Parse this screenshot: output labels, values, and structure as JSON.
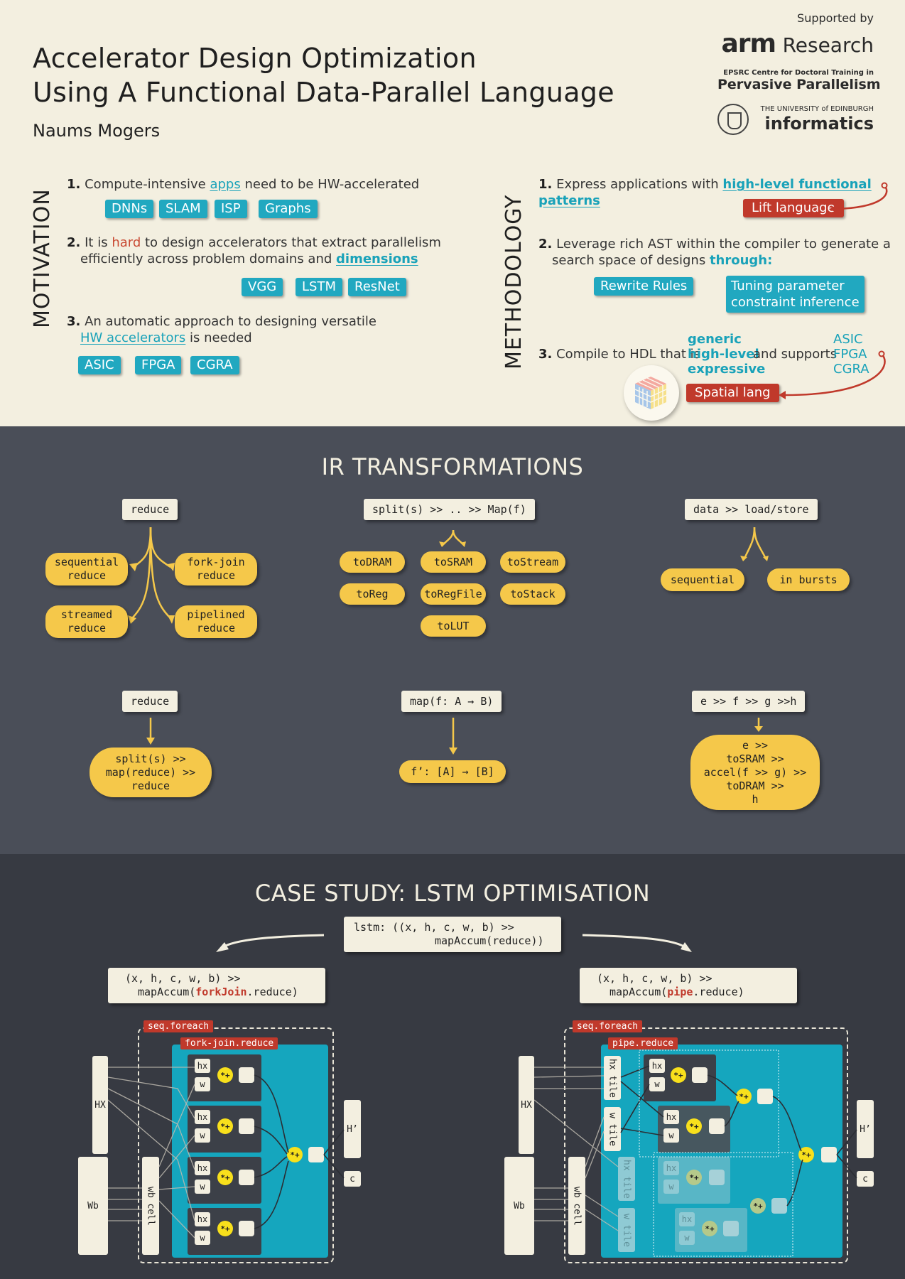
{
  "header": {
    "title_line1": "Accelerator Design Optimization",
    "title_line2": "Using A Functional Data-Parallel Language",
    "author": "Naums Mogers",
    "supported_by": "Supported by",
    "arm_logo": "arm",
    "arm_research": "Research",
    "epsrc_line": "EPSRC Centre for Doctoral Training in",
    "pervasive": "Pervasive Parallelism",
    "uoe": "THE UNIVERSITY of EDINBURGH",
    "informatics": "informatics"
  },
  "motivation": {
    "label": "MOTIVATION",
    "item1": {
      "num": "1.",
      "pre": "Compute-intensive ",
      "hl": "apps",
      "post": " need to be HW-accelerated",
      "tags": [
        "DNNs",
        "SLAM",
        "ISP",
        "Graphs"
      ]
    },
    "item2": {
      "num": "2.",
      "pre": "It is ",
      "red": "hard",
      "mid": " to design accelerators that extract parallelism",
      "line2": "efficiently across problem domains and ",
      "hl": "dimensions",
      "tags": [
        "VGG",
        "LSTM",
        "ResNet"
      ]
    },
    "item3": {
      "num": "3.",
      "line1": "An automatic approach to designing versatile",
      "hl": "HW accelerators",
      "post": " is needed",
      "tags": [
        "ASIC",
        "FPGA",
        "CGRA"
      ]
    }
  },
  "methodology": {
    "label": "METHODOLOGY",
    "item1": {
      "num": "1.",
      "pre": "Express applications with ",
      "hl": "high-level functional patterns",
      "tag": "Lift language"
    },
    "item2": {
      "num": "2.",
      "line1": "Leverage rich AST within the compiler to generate a",
      "line2": "search space of designs ",
      "hl": "through:",
      "tag1": "Rewrite Rules",
      "tag2_line1": "Tuning parameter",
      "tag2_line2": "constraint inference"
    },
    "item3": {
      "num": "3.",
      "pre": "Compile to HDL that is ",
      "props": [
        "generic",
        "high-level",
        "expressive"
      ],
      "mid": "and supports",
      "targets": [
        "ASIC",
        "FPGA",
        "CGRA"
      ],
      "tag": "Spatial lang"
    }
  },
  "ir": {
    "title": "IR TRANSFORMATIONS",
    "reduce1": {
      "src": "reduce",
      "outs": [
        [
          "sequential",
          "reduce"
        ],
        [
          "fork-join",
          "reduce"
        ],
        [
          "streamed",
          "reduce"
        ],
        [
          "pipelined",
          "reduce"
        ]
      ]
    },
    "split": {
      "src": "split(s) >> .. >> Map(f)",
      "outs": [
        "toDRAM",
        "toSRAM",
        "toStream",
        "toReg",
        "toRegFile",
        "toStack",
        "toLUT"
      ]
    },
    "data": {
      "src": "data >> load/store",
      "outs": [
        "sequential",
        "in bursts"
      ]
    },
    "reduce2": {
      "src": "reduce",
      "out": [
        "split(s) >>",
        "map(reduce) >>",
        "reduce"
      ]
    },
    "map": {
      "src": "map(f: A → B)",
      "out": "f’: [A] → [B]"
    },
    "chain": {
      "src": "e >> f >> g >>h",
      "out": [
        "e >>",
        "toSRAM >>",
        "accel(f >> g) >>",
        "toDRAM >>",
        "h"
      ]
    }
  },
  "case": {
    "title": "CASE STUDY: LSTM OPTIMISATION",
    "lstm_line1": "lstm: ((x, h, c, w, b) >>",
    "lstm_line2": "mapAccum(reduce))",
    "left": {
      "line1": "(x, h, c, w, b) >>",
      "pre": "mapAccum(",
      "kw": "forkJoin",
      "post": ".reduce)",
      "outer": "seq.foreach",
      "inner": "fork-join.reduce"
    },
    "right": {
      "line1": "(x, h, c, w, b) >>",
      "pre": "mapAccum(",
      "kw": "pipe",
      "post": ".reduce)",
      "outer": "seq.foreach",
      "inner": "pipe.reduce"
    },
    "labels": {
      "hx_bar": "HX",
      "wb_bar": "Wb",
      "wb_cell": "wb cell",
      "hx": "hx",
      "w": "w",
      "op": "*+",
      "hout": "H’",
      "c": "c",
      "hx_tile": "hx tile",
      "w_tile": "w tile"
    }
  }
}
